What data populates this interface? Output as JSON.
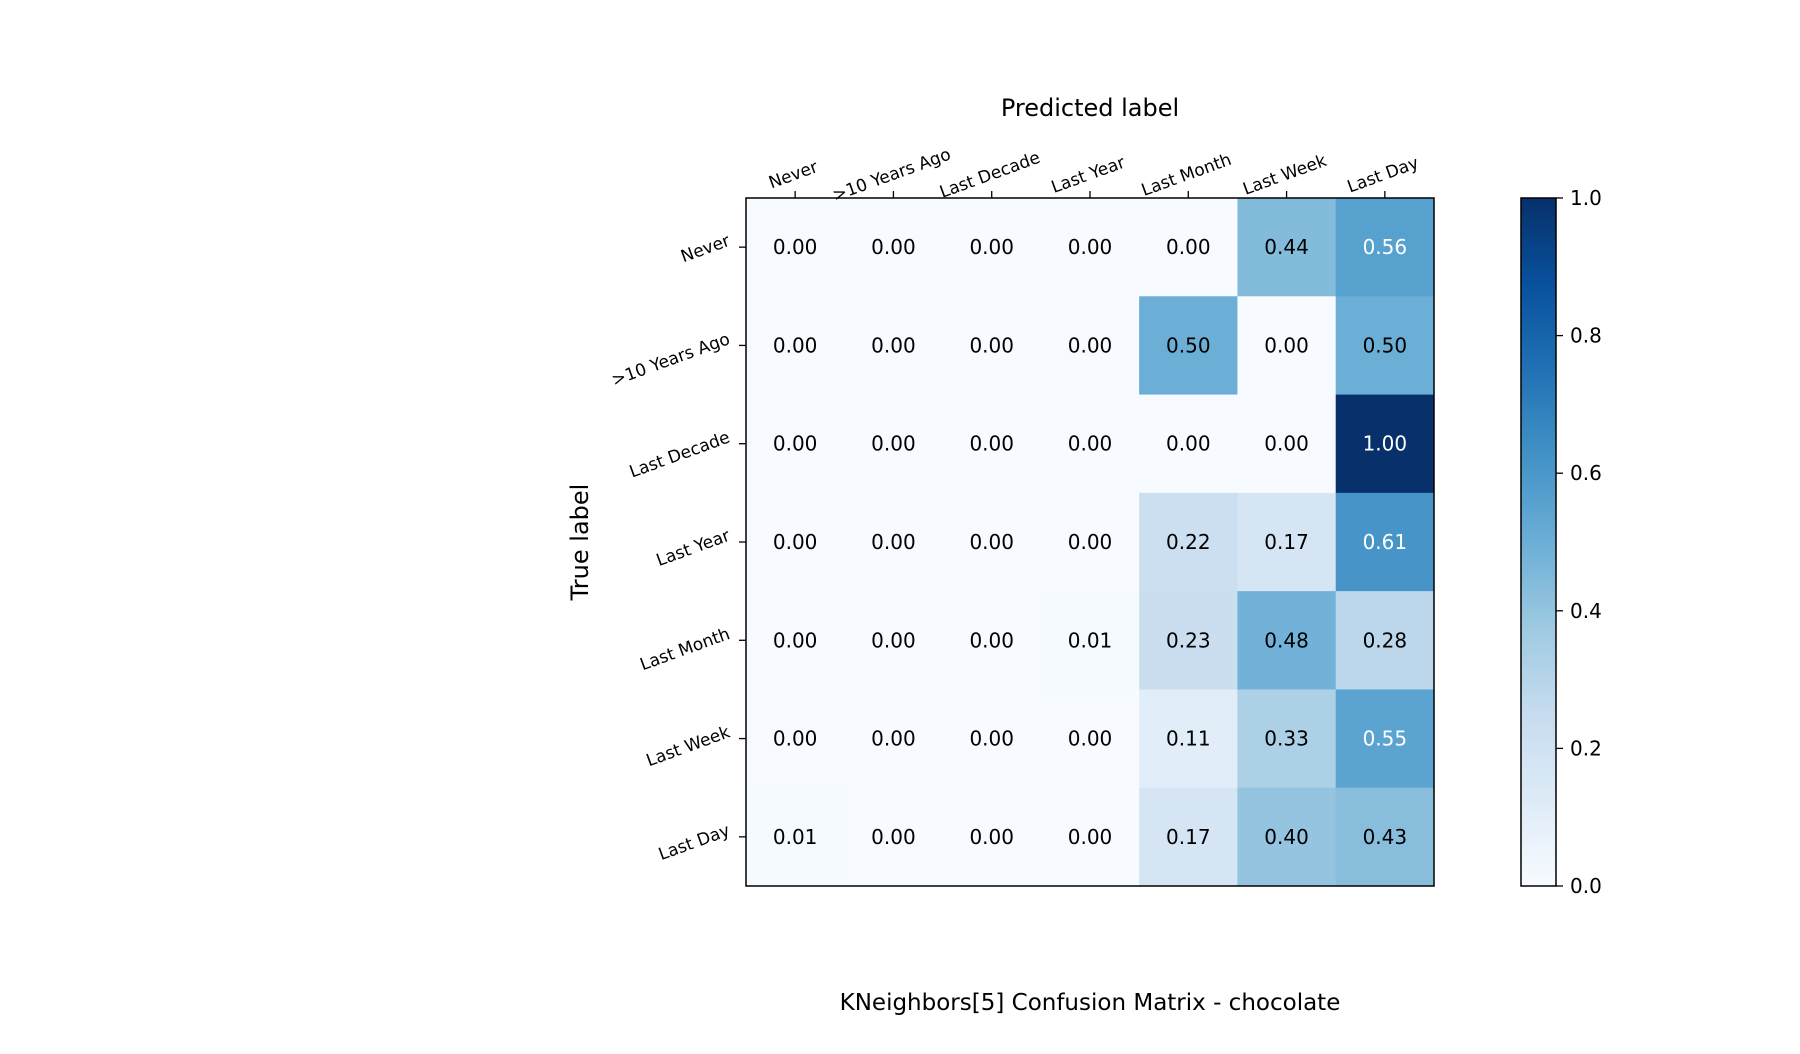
{
  "chart_data": {
    "type": "heatmap",
    "title": "KNeighbors[5]  Confusion Matrix - chocolate",
    "xlabel": "Predicted label",
    "ylabel": "True label",
    "x_categories": [
      "Never",
      ">10 Years Ago",
      "Last Decade",
      "Last Year",
      "Last Month",
      "Last Week",
      "Last Day"
    ],
    "y_categories": [
      "Never",
      ">10 Years Ago",
      "Last Decade",
      "Last Year",
      "Last Month",
      "Last Week",
      "Last Day"
    ],
    "values": [
      [
        0.0,
        0.0,
        0.0,
        0.0,
        0.0,
        0.44,
        0.56
      ],
      [
        0.0,
        0.0,
        0.0,
        0.0,
        0.5,
        0.0,
        0.5
      ],
      [
        0.0,
        0.0,
        0.0,
        0.0,
        0.0,
        0.0,
        1.0
      ],
      [
        0.0,
        0.0,
        0.0,
        0.0,
        0.22,
        0.17,
        0.61
      ],
      [
        0.0,
        0.0,
        0.0,
        0.01,
        0.23,
        0.48,
        0.28
      ],
      [
        0.0,
        0.0,
        0.0,
        0.0,
        0.11,
        0.33,
        0.55
      ],
      [
        0.01,
        0.0,
        0.0,
        0.0,
        0.17,
        0.4,
        0.43
      ]
    ],
    "value_format_decimals": 2,
    "colormap": "Blues",
    "color_range": [
      0.0,
      1.0
    ],
    "colorbar_ticks": [
      0.0,
      0.2,
      0.4,
      0.6,
      0.8,
      1.0
    ],
    "colorbar_tick_labels": [
      "0.0",
      "0.2",
      "0.4",
      "0.6",
      "0.8",
      "1.0"
    ],
    "grid": false,
    "x_axis_position": "top"
  }
}
